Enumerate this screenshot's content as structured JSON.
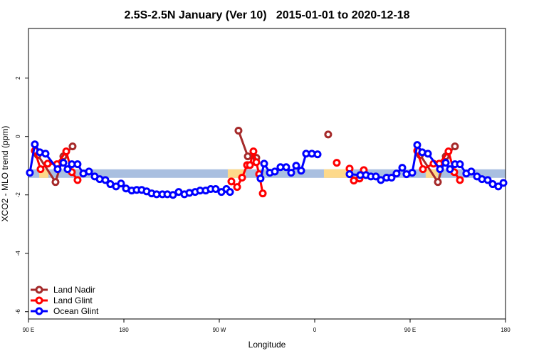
{
  "chart_data": {
    "type": "line",
    "title": "2.5S-2.5N January (Ver 10)   2015-01-01 to 2020-12-18",
    "xlabel": "Longitude",
    "ylabel": "XCO2 - MLO trend (ppm)",
    "xlim": [
      90,
      540
    ],
    "xticks": [
      {
        "value": 90,
        "label": "90 E"
      },
      {
        "value": 180,
        "label": "180"
      },
      {
        "value": 270,
        "label": "90 W"
      },
      {
        "value": 360,
        "label": "0"
      },
      {
        "value": 450,
        "label": "90 E"
      },
      {
        "value": 540,
        "label": "180"
      }
    ],
    "ylim": [
      -6.25,
      3.7
    ],
    "yticks": [
      -6,
      -4,
      -2,
      0,
      2
    ],
    "legend": "bottom-left",
    "reference_band": {
      "value": -1.27,
      "color": "#a9bfe0"
    },
    "land_segments": {
      "color": "#fdd98a",
      "ranges": [
        [
          100.1,
          108.8
        ],
        [
          278.0,
          294.8
        ],
        [
          368.7,
          392.2
        ],
        [
          464.7,
          476.2
        ]
      ]
    },
    "series": [
      {
        "name": "Land Nadir",
        "color": "#a52a2a",
        "x": [
          98.7,
          115.5,
          122.9,
          131.6,
          null,
          288.1,
          296.9,
          304.9,
          null,
          372.7,
          null,
          459.4,
          476.2,
          483.6,
          492.3
        ],
        "values": [
          -0.63,
          -1.56,
          -0.68,
          -0.34,
          null,
          0.2,
          -0.68,
          -0.73,
          null,
          0.07,
          null,
          -0.63,
          -1.56,
          -0.68,
          -0.34
        ]
      },
      {
        "name": "Land Glint",
        "color": "#ff0000",
        "x": [
          96.0,
          101.4,
          108.1,
          116.9,
          125.6,
          130.9,
          136.3,
          null,
          281.4,
          286.8,
          291.5,
          296.2,
          298.9,
          302.2,
          304.9,
          307.6,
          311.0,
          null,
          380.8,
          null,
          392.9,
          396.9,
          402.3,
          406.3,
          null,
          456.7,
          462.1,
          472.1,
          477.5,
          486.2,
          491.6,
          497.0
        ],
        "values": [
          -0.49,
          -1.12,
          -0.93,
          -0.95,
          -0.51,
          -1.22,
          -1.49,
          null,
          -1.54,
          -1.73,
          -1.41,
          -0.98,
          -0.98,
          -0.51,
          -0.88,
          -1.29,
          -1.95,
          null,
          -0.9,
          null,
          -1.1,
          -1.51,
          -1.44,
          -1.15,
          null,
          -0.49,
          -1.12,
          -0.93,
          -0.93,
          -0.51,
          -1.22,
          -1.49
        ]
      },
      {
        "name": "Ocean Glint",
        "color": "#0000ff",
        "x": [
          91.3,
          96.0,
          100.7,
          106.1,
          117.5,
          122.9,
          126.9,
          130.9,
          136.3,
          141.7,
          147.1,
          152.5,
          157.2,
          162.5,
          167.2,
          172.6,
          177.3,
          182.0,
          187.4,
          192.1,
          196.8,
          201.5,
          206.2,
          210.9,
          216.3,
          221.0,
          226.3,
          231.7,
          237.1,
          241.8,
          247.2,
          251.9,
          257.2,
          261.9,
          266.6,
          272.0,
          276.7,
          280.1,
          null,
          308.9,
          312.3,
          317.7,
          322.4,
          327.7,
          333.1,
          337.8,
          342.5,
          347.2,
          351.9,
          357.3,
          362.7,
          null,
          392.9,
          403.0,
          408.3,
          413.0,
          417.7,
          422.4,
          427.8,
          432.5,
          437.2,
          442.6,
          446.6,
          452.0,
          456.7,
          461.4,
          466.8,
          478.2,
          483.6,
          487.6,
          492.3,
          497.0,
          503.0,
          507.7,
          513.1,
          517.8,
          523.2,
          527.9,
          533.2,
          538.0
        ],
        "values": [
          -1.24,
          -0.27,
          -0.54,
          -0.59,
          -1.12,
          -0.9,
          -1.12,
          -0.95,
          -0.95,
          -1.27,
          -1.2,
          -1.37,
          -1.46,
          -1.49,
          -1.63,
          -1.71,
          -1.61,
          -1.78,
          -1.85,
          -1.83,
          -1.83,
          -1.88,
          -1.95,
          -1.98,
          -1.98,
          -1.98,
          -2.0,
          -1.9,
          -1.98,
          -1.93,
          -1.9,
          -1.85,
          -1.85,
          -1.8,
          -1.8,
          -1.9,
          -1.8,
          -1.9,
          null,
          -1.44,
          -0.93,
          -1.24,
          -1.2,
          -1.05,
          -1.05,
          -1.24,
          -1.0,
          -1.17,
          -0.59,
          -0.59,
          -0.61,
          null,
          -1.29,
          -1.32,
          -1.32,
          -1.37,
          -1.37,
          -1.49,
          -1.41,
          -1.41,
          -1.27,
          -1.07,
          -1.29,
          -1.24,
          -0.29,
          -0.54,
          -0.59,
          -1.12,
          -0.9,
          -1.12,
          -0.95,
          -0.95,
          -1.27,
          -1.2,
          -1.37,
          -1.46,
          -1.49,
          -1.63,
          -1.71,
          -1.59
        ]
      }
    ]
  }
}
